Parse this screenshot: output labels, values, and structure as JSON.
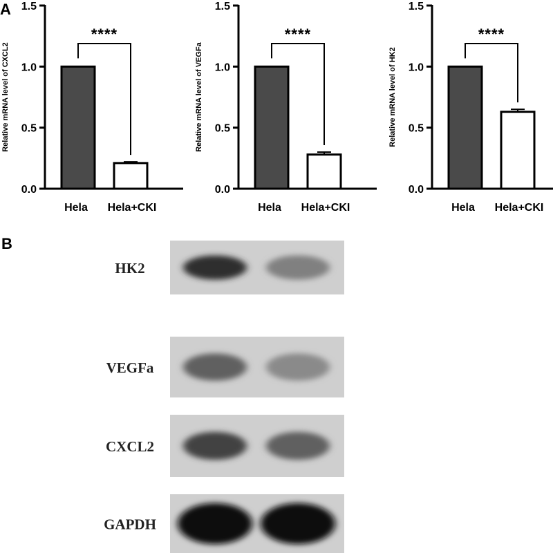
{
  "panel_labels": {
    "a": "A",
    "b": "B"
  },
  "colors": {
    "control_bar": "#4a4a4a",
    "treated_bar": "#ffffff",
    "axis": "#000000"
  },
  "chart_data": [
    {
      "type": "bar",
      "categories": [
        "Hela",
        "Hela+CKI"
      ],
      "values": [
        1.0,
        0.21
      ],
      "errors": [
        0.0,
        0.01
      ],
      "ylabel": "Relative mRNA level of CXCL2",
      "ylim": [
        0,
        1.5
      ],
      "yticks": [
        "0.0",
        "0.5",
        "1.0",
        "1.5"
      ],
      "significance": "****"
    },
    {
      "type": "bar",
      "categories": [
        "Hela",
        "Hela+CKI"
      ],
      "values": [
        1.0,
        0.28
      ],
      "errors": [
        0.0,
        0.02
      ],
      "ylabel": "Relative mRNA level of VEGFa",
      "ylim": [
        0,
        1.5
      ],
      "yticks": [
        "0.0",
        "0.5",
        "1.0",
        "1.5"
      ],
      "significance": "****"
    },
    {
      "type": "bar",
      "categories": [
        "Hela",
        "Hela+CKI"
      ],
      "values": [
        1.0,
        0.63
      ],
      "errors": [
        0.0,
        0.02
      ],
      "ylabel": "Relative mRNA level of HK2",
      "ylim": [
        0,
        1.5
      ],
      "yticks": [
        "0.0",
        "0.5",
        "1.0",
        "1.5"
      ],
      "significance": "****"
    }
  ],
  "western_blot": [
    {
      "protein": "HK2",
      "intensity": [
        0.85,
        0.45
      ]
    },
    {
      "protein": "VEGFa",
      "intensity": [
        0.6,
        0.4
      ]
    },
    {
      "protein": "CXCL2",
      "intensity": [
        0.75,
        0.6
      ]
    },
    {
      "protein": "GAPDH",
      "intensity": [
        1.0,
        1.0
      ]
    }
  ]
}
